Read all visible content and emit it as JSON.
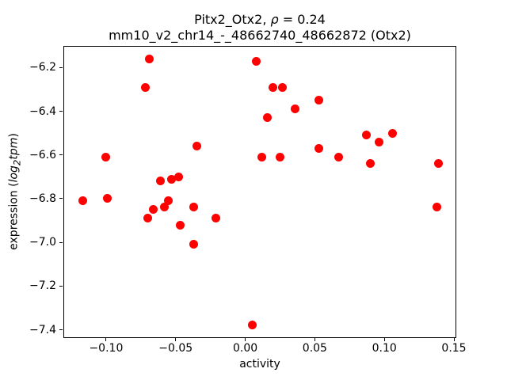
{
  "chart_data": {
    "type": "scatter",
    "title": "Pitx2_Otx2, ρ = 0.24\nmm10_v2_chr14_-_48662740_48662872 (Otx2)",
    "title_line1": {
      "prefix": "Pitx2_Otx2, ",
      "rho": "ρ",
      "suffix": " = 0.24"
    },
    "title_line2": "mm10_v2_chr14_-_48662740_48662872 (Otx2)",
    "xlabel": "activity",
    "ylabel": {
      "prefix": "expression (",
      "math_main": "log",
      "math_sub": "2",
      "math_rest": "tpm",
      "suffix": ")"
    },
    "marker_color": "#ff0000",
    "axis_color": "#000000",
    "background": "#ffffff",
    "grid": false,
    "legend": null,
    "xlim": [
      -0.1307,
      0.1517
    ],
    "ylim": [
      -7.438,
      -6.101
    ],
    "x_ticks": [
      {
        "v": -0.1,
        "label": "−0.10"
      },
      {
        "v": -0.05,
        "label": "−0.05"
      },
      {
        "v": 0.0,
        "label": "0.00"
      },
      {
        "v": 0.05,
        "label": "0.05"
      },
      {
        "v": 0.1,
        "label": "0.10"
      },
      {
        "v": 0.15,
        "label": "0.15"
      }
    ],
    "y_ticks": [
      {
        "v": -6.2,
        "label": "−6.2"
      },
      {
        "v": -6.4,
        "label": "−6.4"
      },
      {
        "v": -6.6,
        "label": "−6.6"
      },
      {
        "v": -6.8,
        "label": "−6.8"
      },
      {
        "v": -7.0,
        "label": "−7.0"
      },
      {
        "v": -7.2,
        "label": "−7.2"
      },
      {
        "v": -7.4,
        "label": "−7.4"
      }
    ],
    "points": [
      {
        "x": -0.117,
        "y": -6.81
      },
      {
        "x": -0.1,
        "y": -6.61
      },
      {
        "x": -0.099,
        "y": -6.8
      },
      {
        "x": -0.072,
        "y": -6.29
      },
      {
        "x": -0.07,
        "y": -6.89
      },
      {
        "x": -0.069,
        "y": -6.16
      },
      {
        "x": -0.066,
        "y": -6.85
      },
      {
        "x": -0.061,
        "y": -6.72
      },
      {
        "x": -0.058,
        "y": -6.84
      },
      {
        "x": -0.055,
        "y": -6.81
      },
      {
        "x": -0.053,
        "y": -6.71
      },
      {
        "x": -0.048,
        "y": -6.7
      },
      {
        "x": -0.047,
        "y": -6.92
      },
      {
        "x": -0.037,
        "y": -6.84
      },
      {
        "x": -0.037,
        "y": -7.01
      },
      {
        "x": -0.035,
        "y": -6.56
      },
      {
        "x": -0.021,
        "y": -6.89
      },
      {
        "x": 0.005,
        "y": -7.38
      },
      {
        "x": 0.008,
        "y": -6.17
      },
      {
        "x": 0.012,
        "y": -6.61
      },
      {
        "x": 0.016,
        "y": -6.43
      },
      {
        "x": 0.02,
        "y": -6.29
      },
      {
        "x": 0.025,
        "y": -6.61
      },
      {
        "x": 0.027,
        "y": -6.29
      },
      {
        "x": 0.036,
        "y": -6.39
      },
      {
        "x": 0.053,
        "y": -6.35
      },
      {
        "x": 0.053,
        "y": -6.57
      },
      {
        "x": 0.067,
        "y": -6.61
      },
      {
        "x": 0.087,
        "y": -6.51
      },
      {
        "x": 0.09,
        "y": -6.64
      },
      {
        "x": 0.096,
        "y": -6.54
      },
      {
        "x": 0.106,
        "y": -6.5
      },
      {
        "x": 0.138,
        "y": -6.84
      },
      {
        "x": 0.139,
        "y": -6.64
      }
    ]
  }
}
